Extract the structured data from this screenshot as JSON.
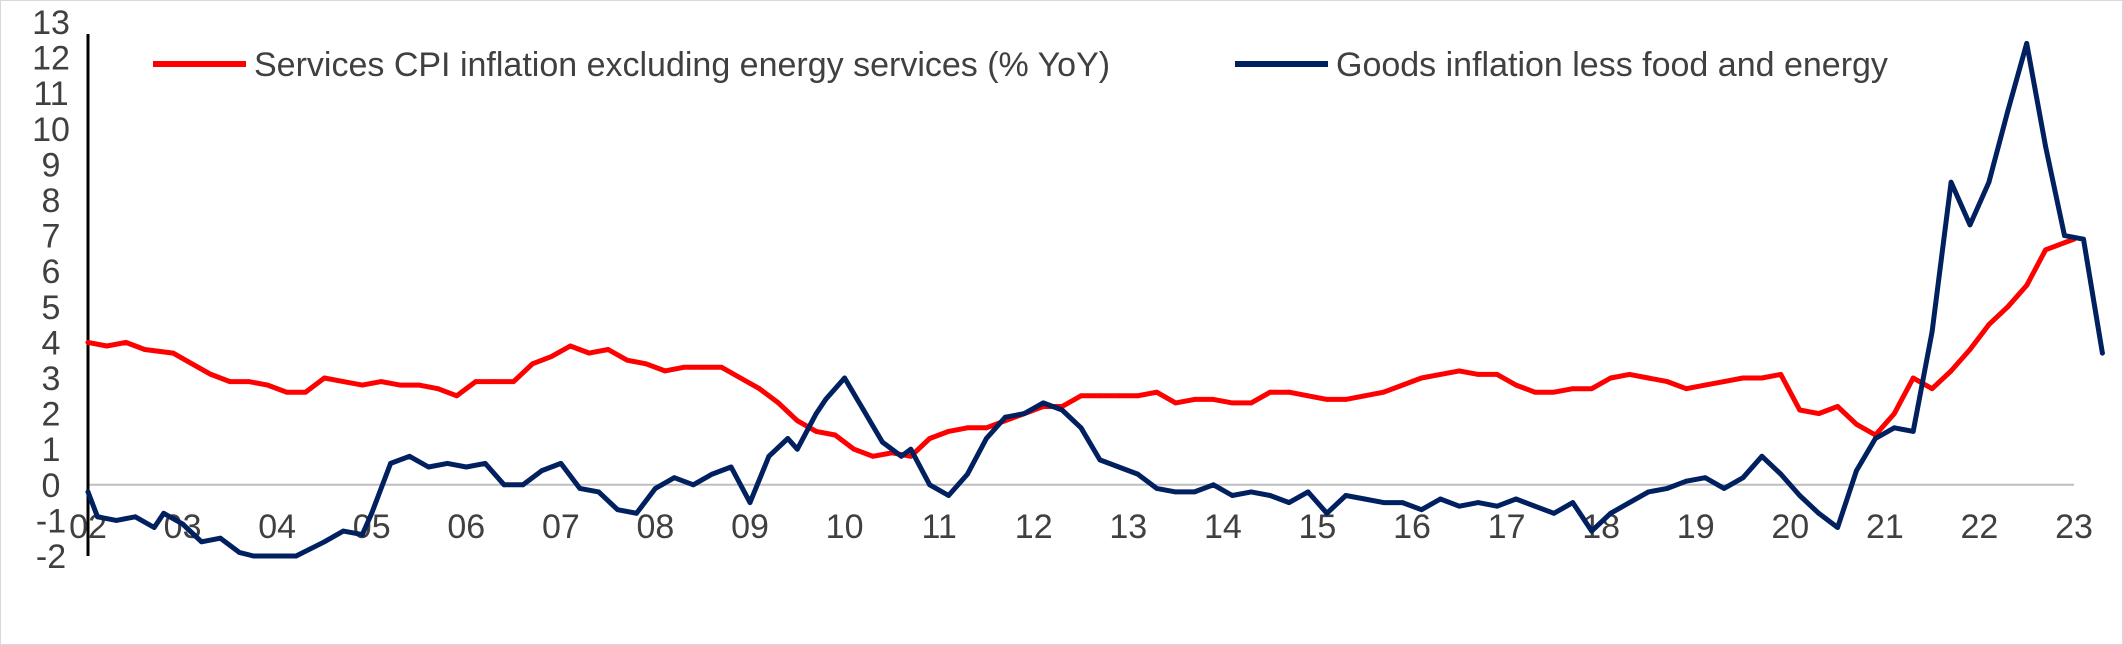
{
  "chart_data": {
    "type": "line",
    "title": "",
    "xlabel": "",
    "ylabel": "",
    "ylim": [
      -2,
      13
    ],
    "xlim": [
      2002,
      2023
    ],
    "y_ticks": [
      "-2",
      "-1",
      "0",
      "1",
      "2",
      "3",
      "4",
      "5",
      "6",
      "7",
      "8",
      "9",
      "10",
      "11",
      "12",
      "13"
    ],
    "x_tick_labels": [
      "02",
      "03",
      "04",
      "05",
      "06",
      "07",
      "08",
      "09",
      "10",
      "11",
      "12",
      "13",
      "14",
      "15",
      "16",
      "17",
      "18",
      "19",
      "20",
      "21",
      "22",
      "23"
    ],
    "legend": {
      "placement": "top"
    },
    "grid": false,
    "series": [
      {
        "name": "Services CPI inflation excluding energy services (% YoY)",
        "color": "#ff0000",
        "points": [
          [
            2002.0,
            4.0
          ],
          [
            2002.2,
            3.9
          ],
          [
            2002.4,
            4.0
          ],
          [
            2002.6,
            3.8
          ],
          [
            2002.9,
            3.7
          ],
          [
            2003.1,
            3.4
          ],
          [
            2003.3,
            3.1
          ],
          [
            2003.5,
            2.9
          ],
          [
            2003.7,
            2.9
          ],
          [
            2003.9,
            2.8
          ],
          [
            2004.1,
            2.6
          ],
          [
            2004.3,
            2.6
          ],
          [
            2004.5,
            3.0
          ],
          [
            2004.7,
            2.9
          ],
          [
            2004.9,
            2.8
          ],
          [
            2005.1,
            2.9
          ],
          [
            2005.3,
            2.8
          ],
          [
            2005.5,
            2.8
          ],
          [
            2005.7,
            2.7
          ],
          [
            2005.9,
            2.5
          ],
          [
            2006.1,
            2.9
          ],
          [
            2006.3,
            2.9
          ],
          [
            2006.5,
            2.9
          ],
          [
            2006.7,
            3.4
          ],
          [
            2006.9,
            3.6
          ],
          [
            2007.1,
            3.9
          ],
          [
            2007.3,
            3.7
          ],
          [
            2007.5,
            3.8
          ],
          [
            2007.7,
            3.5
          ],
          [
            2007.9,
            3.4
          ],
          [
            2008.1,
            3.2
          ],
          [
            2008.3,
            3.3
          ],
          [
            2008.5,
            3.3
          ],
          [
            2008.7,
            3.3
          ],
          [
            2008.9,
            3.0
          ],
          [
            2009.1,
            2.7
          ],
          [
            2009.3,
            2.3
          ],
          [
            2009.5,
            1.8
          ],
          [
            2009.7,
            1.5
          ],
          [
            2009.9,
            1.4
          ],
          [
            2010.1,
            1.0
          ],
          [
            2010.3,
            0.8
          ],
          [
            2010.5,
            0.9
          ],
          [
            2010.7,
            0.8
          ],
          [
            2010.9,
            1.3
          ],
          [
            2011.1,
            1.5
          ],
          [
            2011.3,
            1.6
          ],
          [
            2011.5,
            1.6
          ],
          [
            2011.7,
            1.8
          ],
          [
            2011.9,
            2.0
          ],
          [
            2012.1,
            2.2
          ],
          [
            2012.3,
            2.2
          ],
          [
            2012.5,
            2.5
          ],
          [
            2012.7,
            2.5
          ],
          [
            2012.9,
            2.5
          ],
          [
            2013.1,
            2.5
          ],
          [
            2013.3,
            2.6
          ],
          [
            2013.5,
            2.3
          ],
          [
            2013.7,
            2.4
          ],
          [
            2013.9,
            2.4
          ],
          [
            2014.1,
            2.3
          ],
          [
            2014.3,
            2.3
          ],
          [
            2014.5,
            2.6
          ],
          [
            2014.7,
            2.6
          ],
          [
            2014.9,
            2.5
          ],
          [
            2015.1,
            2.4
          ],
          [
            2015.3,
            2.4
          ],
          [
            2015.5,
            2.5
          ],
          [
            2015.7,
            2.6
          ],
          [
            2015.9,
            2.8
          ],
          [
            2016.1,
            3.0
          ],
          [
            2016.3,
            3.1
          ],
          [
            2016.5,
            3.2
          ],
          [
            2016.7,
            3.1
          ],
          [
            2016.9,
            3.1
          ],
          [
            2017.1,
            2.8
          ],
          [
            2017.3,
            2.6
          ],
          [
            2017.5,
            2.6
          ],
          [
            2017.7,
            2.7
          ],
          [
            2017.9,
            2.7
          ],
          [
            2018.1,
            3.0
          ],
          [
            2018.3,
            3.1
          ],
          [
            2018.5,
            3.0
          ],
          [
            2018.7,
            2.9
          ],
          [
            2018.9,
            2.7
          ],
          [
            2019.1,
            2.8
          ],
          [
            2019.3,
            2.9
          ],
          [
            2019.5,
            3.0
          ],
          [
            2019.7,
            3.0
          ],
          [
            2019.9,
            3.1
          ],
          [
            2020.1,
            2.1
          ],
          [
            2020.3,
            2.0
          ],
          [
            2020.5,
            2.2
          ],
          [
            2020.7,
            1.7
          ],
          [
            2020.9,
            1.4
          ],
          [
            2021.1,
            2.0
          ],
          [
            2021.3,
            3.0
          ],
          [
            2021.5,
            2.7
          ],
          [
            2021.7,
            3.2
          ],
          [
            2021.9,
            3.8
          ],
          [
            2022.1,
            4.5
          ],
          [
            2022.3,
            5.0
          ],
          [
            2022.5,
            5.6
          ],
          [
            2022.7,
            6.6
          ],
          [
            2022.9,
            6.8
          ],
          [
            2023.0,
            6.9
          ]
        ]
      },
      {
        "name": "Goods inflation less food and energy",
        "color": "#002060",
        "points": [
          [
            2002.0,
            -0.2
          ],
          [
            2002.1,
            -0.9
          ],
          [
            2002.3,
            -1.0
          ],
          [
            2002.5,
            -0.9
          ],
          [
            2002.7,
            -1.2
          ],
          [
            2002.8,
            -0.8
          ],
          [
            2003.0,
            -1.1
          ],
          [
            2003.2,
            -1.6
          ],
          [
            2003.4,
            -1.5
          ],
          [
            2003.6,
            -1.9
          ],
          [
            2003.75,
            -2.0
          ],
          [
            2004.2,
            -2.0
          ],
          [
            2004.5,
            -1.6
          ],
          [
            2004.7,
            -1.3
          ],
          [
            2004.9,
            -1.4
          ],
          [
            2005.0,
            -0.8
          ],
          [
            2005.2,
            0.6
          ],
          [
            2005.4,
            0.8
          ],
          [
            2005.6,
            0.5
          ],
          [
            2005.8,
            0.6
          ],
          [
            2006.0,
            0.5
          ],
          [
            2006.2,
            0.6
          ],
          [
            2006.4,
            0.0
          ],
          [
            2006.6,
            0.0
          ],
          [
            2006.8,
            0.4
          ],
          [
            2007.0,
            0.6
          ],
          [
            2007.2,
            -0.1
          ],
          [
            2007.4,
            -0.2
          ],
          [
            2007.6,
            -0.7
          ],
          [
            2007.8,
            -0.8
          ],
          [
            2008.0,
            -0.1
          ],
          [
            2008.2,
            0.2
          ],
          [
            2008.4,
            0.0
          ],
          [
            2008.6,
            0.3
          ],
          [
            2008.8,
            0.5
          ],
          [
            2009.0,
            -0.5
          ],
          [
            2009.2,
            0.8
          ],
          [
            2009.4,
            1.3
          ],
          [
            2009.5,
            1.0
          ],
          [
            2009.7,
            2.0
          ],
          [
            2009.8,
            2.4
          ],
          [
            2010.0,
            3.0
          ],
          [
            2010.2,
            2.1
          ],
          [
            2010.4,
            1.2
          ],
          [
            2010.6,
            0.8
          ],
          [
            2010.7,
            1.0
          ],
          [
            2010.9,
            0.0
          ],
          [
            2011.1,
            -0.3
          ],
          [
            2011.3,
            0.3
          ],
          [
            2011.5,
            1.3
          ],
          [
            2011.7,
            1.9
          ],
          [
            2011.9,
            2.0
          ],
          [
            2012.1,
            2.3
          ],
          [
            2012.3,
            2.1
          ],
          [
            2012.5,
            1.6
          ],
          [
            2012.7,
            0.7
          ],
          [
            2012.9,
            0.5
          ],
          [
            2013.1,
            0.3
          ],
          [
            2013.3,
            -0.1
          ],
          [
            2013.5,
            -0.2
          ],
          [
            2013.7,
            -0.2
          ],
          [
            2013.9,
            0.0
          ],
          [
            2014.1,
            -0.3
          ],
          [
            2014.3,
            -0.2
          ],
          [
            2014.5,
            -0.3
          ],
          [
            2014.7,
            -0.5
          ],
          [
            2014.9,
            -0.2
          ],
          [
            2015.1,
            -0.8
          ],
          [
            2015.3,
            -0.3
          ],
          [
            2015.5,
            -0.4
          ],
          [
            2015.7,
            -0.5
          ],
          [
            2015.9,
            -0.5
          ],
          [
            2016.1,
            -0.7
          ],
          [
            2016.3,
            -0.4
          ],
          [
            2016.5,
            -0.6
          ],
          [
            2016.7,
            -0.5
          ],
          [
            2016.9,
            -0.6
          ],
          [
            2017.1,
            -0.4
          ],
          [
            2017.3,
            -0.6
          ],
          [
            2017.5,
            -0.8
          ],
          [
            2017.7,
            -0.5
          ],
          [
            2017.9,
            -1.3
          ],
          [
            2018.1,
            -0.8
          ],
          [
            2018.3,
            -0.5
          ],
          [
            2018.5,
            -0.2
          ],
          [
            2018.7,
            -0.1
          ],
          [
            2018.9,
            0.1
          ],
          [
            2019.1,
            0.2
          ],
          [
            2019.3,
            -0.1
          ],
          [
            2019.5,
            0.2
          ],
          [
            2019.7,
            0.8
          ],
          [
            2019.9,
            0.3
          ],
          [
            2020.1,
            -0.3
          ],
          [
            2020.3,
            -0.8
          ],
          [
            2020.5,
            -1.2
          ],
          [
            2020.7,
            0.4
          ],
          [
            2020.9,
            1.3
          ],
          [
            2021.1,
            1.6
          ],
          [
            2021.3,
            1.5
          ],
          [
            2021.5,
            4.3
          ],
          [
            2021.7,
            8.5
          ],
          [
            2021.9,
            7.3
          ],
          [
            2022.1,
            8.5
          ],
          [
            2022.3,
            10.5
          ],
          [
            2022.5,
            12.4
          ],
          [
            2022.7,
            9.5
          ],
          [
            2022.9,
            7.0
          ],
          [
            2023.1,
            6.9
          ],
          [
            2023.3,
            3.7
          ]
        ]
      }
    ]
  }
}
